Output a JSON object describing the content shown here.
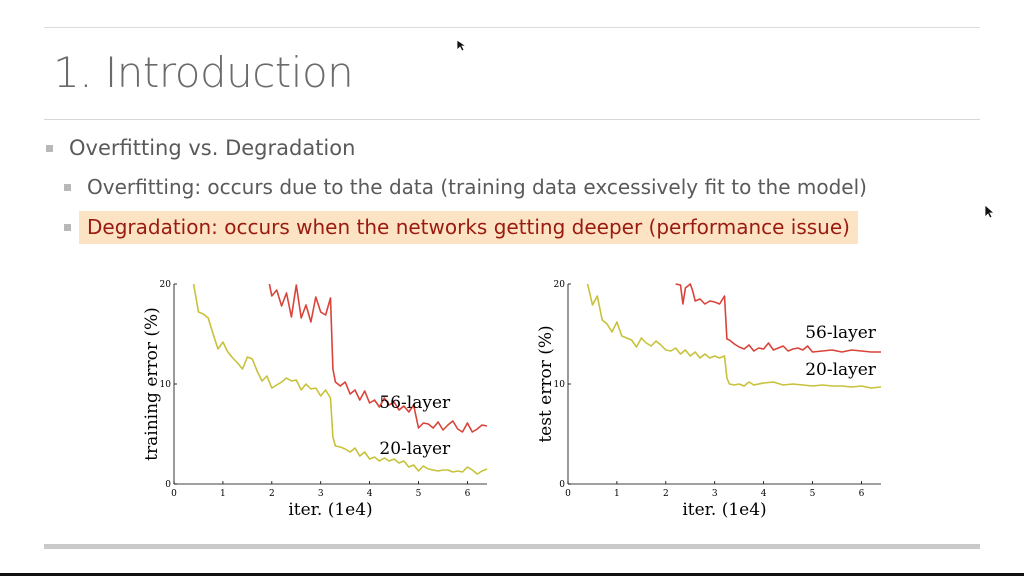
{
  "slide": {
    "title": "1. Introduction",
    "bullets": {
      "main": "Overfitting vs. Degradation",
      "sub1": "Overfitting: occurs due to the data (training data excessively fit to the model)",
      "sub2": "Degradation: occurs when the networks getting deeper (performance issue)"
    },
    "colors": {
      "highlight_bg": "#fbe3c4",
      "highlight_text": "#9a1a10",
      "title": "#6b6b6b"
    }
  },
  "chart_data": [
    {
      "type": "line",
      "ylabel": "training error (%)",
      "xlabel": "iter. (1e4)",
      "xlim": [
        0,
        6.4
      ],
      "ylim": [
        0,
        20
      ],
      "xticks": [
        "0",
        "1",
        "2",
        "3",
        "4",
        "5",
        "6"
      ],
      "yticks": [
        "0",
        "10",
        "20"
      ],
      "series": [
        {
          "name": "56-layer",
          "color": "#d9443a",
          "x": [
            1.95,
            2.0,
            2.1,
            2.2,
            2.3,
            2.4,
            2.5,
            2.6,
            2.7,
            2.8,
            2.9,
            3.0,
            3.1,
            3.2,
            3.25,
            3.3,
            3.4,
            3.5,
            3.6,
            3.7,
            3.8,
            3.9,
            4.0,
            4.1,
            4.2,
            4.3,
            4.4,
            4.5,
            4.6,
            4.7,
            4.8,
            4.9,
            5.0,
            5.1,
            5.2,
            5.3,
            5.4,
            5.5,
            5.6,
            5.7,
            5.8,
            5.9,
            6.0,
            6.1,
            6.2,
            6.3,
            6.4
          ],
          "y": [
            20,
            18.8,
            19.4,
            17.8,
            19.1,
            16.7,
            19.9,
            16.6,
            17.9,
            16.2,
            18.7,
            17.2,
            16.9,
            18.6,
            11.5,
            10.2,
            9.8,
            10.2,
            9.0,
            9.4,
            8.4,
            9.3,
            8.1,
            8.4,
            7.7,
            8.6,
            7.9,
            8.2,
            7.4,
            7.8,
            7.2,
            7.9,
            5.6,
            6.1,
            6.0,
            5.6,
            6.2,
            5.4,
            5.9,
            6.3,
            5.5,
            5.2,
            6.1,
            5.2,
            5.5,
            5.9,
            5.8
          ]
        },
        {
          "name": "20-layer",
          "color": "#c7c23a",
          "x": [
            0.4,
            0.5,
            0.6,
            0.7,
            0.8,
            0.9,
            1.0,
            1.1,
            1.2,
            1.3,
            1.4,
            1.5,
            1.6,
            1.7,
            1.8,
            1.9,
            2.0,
            2.1,
            2.2,
            2.3,
            2.4,
            2.5,
            2.6,
            2.7,
            2.8,
            2.9,
            3.0,
            3.1,
            3.2,
            3.25,
            3.3,
            3.4,
            3.5,
            3.6,
            3.7,
            3.8,
            3.9,
            4.0,
            4.1,
            4.2,
            4.3,
            4.4,
            4.5,
            4.6,
            4.7,
            4.8,
            4.9,
            5.0,
            5.1,
            5.2,
            5.3,
            5.4,
            5.5,
            5.6,
            5.7,
            5.8,
            5.9,
            6.0,
            6.1,
            6.2,
            6.3,
            6.4
          ],
          "y": [
            20,
            17.2,
            17.0,
            16.6,
            15.0,
            13.5,
            14.2,
            13.2,
            12.6,
            12.1,
            11.5,
            12.7,
            12.5,
            11.3,
            10.3,
            10.8,
            9.6,
            9.9,
            10.2,
            10.6,
            10.3,
            10.4,
            9.4,
            10.0,
            9.5,
            9.6,
            8.8,
            9.4,
            8.6,
            4.7,
            3.8,
            3.7,
            3.5,
            3.2,
            3.6,
            2.8,
            3.2,
            2.5,
            2.7,
            2.3,
            2.6,
            2.3,
            2.5,
            2.1,
            2.3,
            1.7,
            1.9,
            1.3,
            1.8,
            1.5,
            1.4,
            1.3,
            1.4,
            1.4,
            1.2,
            1.3,
            1.2,
            1.7,
            1.4,
            1.0,
            1.3,
            1.5
          ]
        }
      ]
    },
    {
      "type": "line",
      "ylabel": "test error (%)",
      "xlabel": "iter. (1e4)",
      "xlim": [
        0,
        6.4
      ],
      "ylim": [
        0,
        20
      ],
      "xticks": [
        "0",
        "1",
        "2",
        "3",
        "4",
        "5",
        "6"
      ],
      "yticks": [
        "0",
        "10",
        "20"
      ],
      "series": [
        {
          "name": "56-layer",
          "color": "#d9443a",
          "x": [
            2.2,
            2.3,
            2.35,
            2.4,
            2.5,
            2.55,
            2.6,
            2.7,
            2.8,
            2.9,
            3.0,
            3.1,
            3.2,
            3.25,
            3.3,
            3.4,
            3.5,
            3.6,
            3.7,
            3.8,
            3.9,
            4.0,
            4.1,
            4.2,
            4.3,
            4.4,
            4.5,
            4.6,
            4.7,
            4.8,
            4.9,
            5.0,
            5.2,
            5.4,
            5.6,
            5.8,
            6.0,
            6.2,
            6.4
          ],
          "y": [
            20,
            19.9,
            18.0,
            19.6,
            20,
            19.3,
            18.3,
            18.5,
            18.0,
            18.3,
            18.2,
            18.0,
            18.8,
            14.5,
            14.4,
            14.0,
            13.7,
            13.5,
            13.9,
            13.3,
            13.6,
            13.5,
            14.1,
            13.4,
            13.6,
            13.8,
            13.3,
            13.5,
            13.6,
            13.4,
            13.8,
            13.2,
            13.3,
            13.4,
            13.2,
            13.4,
            13.3,
            13.2,
            13.2
          ]
        },
        {
          "name": "20-layer",
          "color": "#c7c23a",
          "x": [
            0.4,
            0.5,
            0.6,
            0.7,
            0.8,
            0.9,
            1.0,
            1.1,
            1.2,
            1.3,
            1.4,
            1.5,
            1.6,
            1.7,
            1.8,
            1.9,
            2.0,
            2.1,
            2.2,
            2.3,
            2.4,
            2.5,
            2.6,
            2.7,
            2.8,
            2.9,
            3.0,
            3.1,
            3.2,
            3.25,
            3.3,
            3.4,
            3.5,
            3.6,
            3.7,
            3.8,
            4.0,
            4.2,
            4.4,
            4.6,
            4.8,
            5.0,
            5.2,
            5.4,
            5.6,
            5.8,
            6.0,
            6.2,
            6.4
          ],
          "y": [
            20,
            17.9,
            18.8,
            16.4,
            16.0,
            15.2,
            16.2,
            14.8,
            14.6,
            14.4,
            13.7,
            14.6,
            14.1,
            13.8,
            14.3,
            13.9,
            13.4,
            13.3,
            13.6,
            13.0,
            13.4,
            12.8,
            13.2,
            12.6,
            13.0,
            12.6,
            12.8,
            12.6,
            12.8,
            10.6,
            10.0,
            9.9,
            10.0,
            9.8,
            10.2,
            9.9,
            10.1,
            10.2,
            9.9,
            10.0,
            9.9,
            9.8,
            9.9,
            9.8,
            9.8,
            9.7,
            9.8,
            9.6,
            9.7
          ]
        }
      ]
    }
  ]
}
